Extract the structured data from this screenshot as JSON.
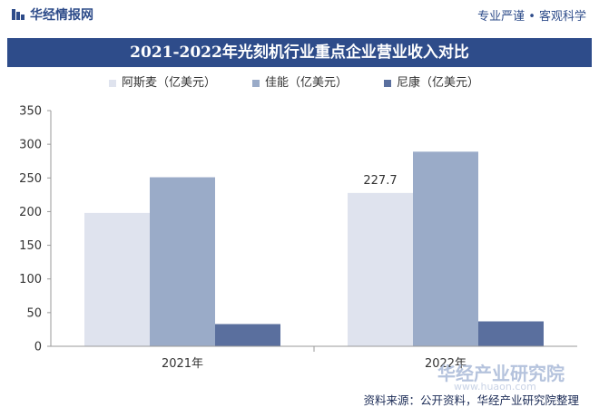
{
  "header": {
    "site_name": "华经情报网",
    "slogan": "专业严谨 • 客观科学"
  },
  "colors": {
    "brand": "#2e4c8a",
    "asml": "#dfe3ee",
    "canon": "#9aabc8",
    "nikon": "#5a6f9e"
  },
  "chart_data": {
    "type": "bar",
    "title": "2021-2022年光刻机行业重点企业营业收入对比",
    "categories": [
      "2021年",
      "2022年"
    ],
    "series": [
      {
        "name": "阿斯麦（亿美元）",
        "values": [
          198,
          227.7
        ]
      },
      {
        "name": "佳能（亿美元）",
        "values": [
          251,
          289
        ]
      },
      {
        "name": "尼康（亿美元）",
        "values": [
          33,
          37
        ]
      }
    ],
    "data_labels": [
      "227.7"
    ],
    "ylim": [
      0,
      350
    ],
    "yticks": [
      "0",
      "50",
      "100",
      "150",
      "200",
      "250",
      "300",
      "350"
    ],
    "legend_position": "top-left",
    "grid": false
  },
  "footer": {
    "source": "资料来源：公开资料，华经产业研究院整理"
  },
  "watermark": {
    "text": "华经产业研究院",
    "url": "www.huaon.com"
  }
}
